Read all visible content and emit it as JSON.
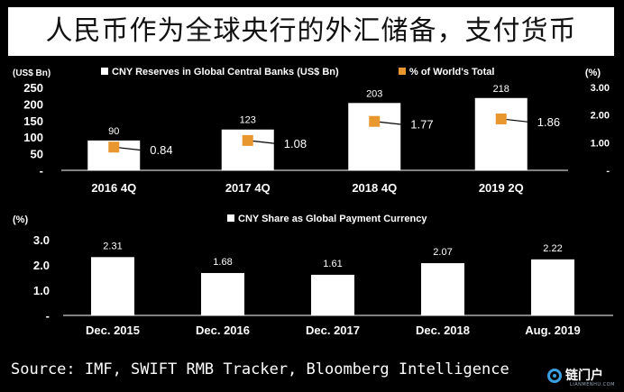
{
  "title": "人民币作为全球央行的外汇储备，支付货币",
  "source": "Source: IMF, SWIFT RMB Tracker, Bloomberg Intelligence",
  "logo": {
    "text": "链门户",
    "sub": "LIANMENHU.COM"
  },
  "colors": {
    "background": "#000000",
    "bar": "#ffffff",
    "marker": "#e8962e",
    "text": "#ffffff"
  },
  "chart_data": [
    {
      "type": "bar",
      "left_unit": "(US$ Bn)",
      "right_unit": "(%)",
      "categories": [
        "2016 4Q",
        "2017 4Q",
        "2018 4Q",
        "2019 2Q"
      ],
      "series": [
        {
          "name": "CNY Reserves in Global Central Banks (US$ Bn)",
          "type": "bar",
          "axis": "left",
          "values": [
            90,
            123,
            203,
            218
          ]
        },
        {
          "name": "% of World's Total",
          "type": "scatter",
          "axis": "right",
          "values": [
            0.84,
            1.08,
            1.77,
            1.86
          ],
          "labels": [
            "0.84",
            "1.08",
            "1.77",
            "1.86"
          ]
        }
      ],
      "ylim": [
        0,
        250
      ],
      "yticks": [
        0,
        50,
        100,
        150,
        200,
        250
      ],
      "ytick_labels": [
        "-",
        "50",
        "100",
        "150",
        "200",
        "250"
      ],
      "y2lim": [
        0,
        3
      ],
      "y2ticks": [
        0,
        1,
        2,
        3
      ],
      "y2tick_labels": [
        "-",
        "1.00",
        "2.00",
        "3.00"
      ],
      "grid": false,
      "legend": "top"
    },
    {
      "type": "bar",
      "left_unit": "(%)",
      "categories": [
        "Dec. 2015",
        "Dec. 2016",
        "Dec. 2017",
        "Dec. 2018",
        "Aug. 2019"
      ],
      "series": [
        {
          "name": "CNY Share as Global Payment Currency",
          "type": "bar",
          "axis": "left",
          "values": [
            2.31,
            1.68,
            1.61,
            2.07,
            2.22
          ]
        }
      ],
      "ylim": [
        0,
        3
      ],
      "yticks": [
        0,
        1,
        2,
        3
      ],
      "ytick_labels": [
        "-",
        "1.0",
        "2.0",
        "3.0"
      ],
      "grid": false,
      "legend": "top"
    }
  ]
}
